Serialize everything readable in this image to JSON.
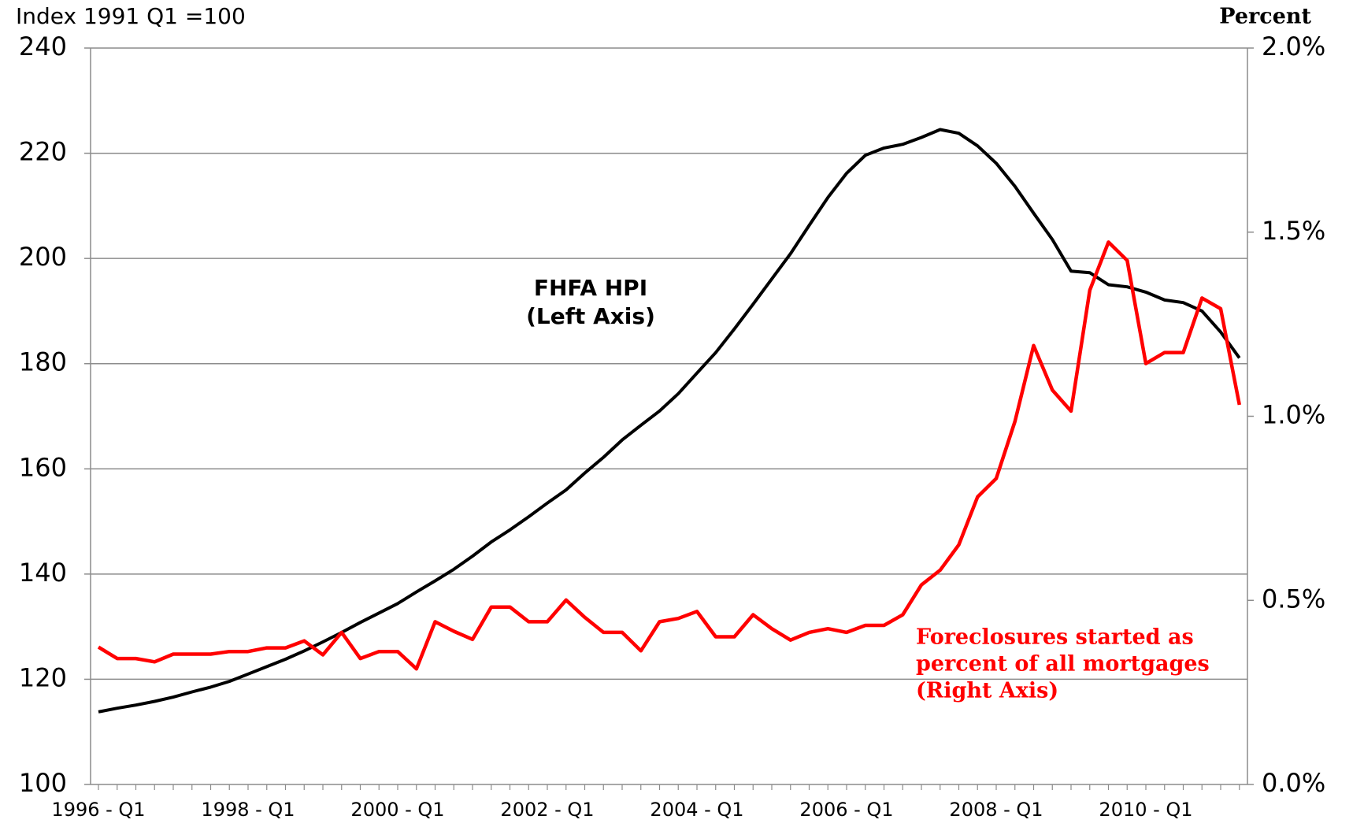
{
  "chart_data": {
    "type": "line",
    "y_axis_label": "Index 1991 Q1 =100",
    "y2_axis_label": "Percent",
    "categories": [
      "1996 - Q1",
      null,
      null,
      null,
      null,
      null,
      null,
      null,
      "1998 - Q1",
      null,
      null,
      null,
      null,
      null,
      null,
      null,
      "2000 - Q1",
      null,
      null,
      null,
      null,
      null,
      null,
      null,
      "2002 - Q1",
      null,
      null,
      null,
      null,
      null,
      null,
      null,
      "2004 - Q1",
      null,
      null,
      null,
      null,
      null,
      null,
      null,
      "2006 - Q1",
      null,
      null,
      null,
      null,
      null,
      null,
      null,
      "2008 - Q1",
      null,
      null,
      null,
      null,
      null,
      null,
      null,
      "2010 - Q1",
      null,
      null,
      null,
      null,
      null
    ],
    "series": [
      {
        "name": "FHFA HPI",
        "color": "#000000",
        "axis": "y",
        "values": [
          113.8,
          114.5,
          115.1,
          115.8,
          116.6,
          117.6,
          118.5,
          119.6,
          121.0,
          122.4,
          123.8,
          125.4,
          127.1,
          128.9,
          130.8,
          132.6,
          134.4,
          136.6,
          138.7,
          140.9,
          143.4,
          146.1,
          148.4,
          150.9,
          153.5,
          156.0,
          159.2,
          162.2,
          165.5,
          168.3,
          171.0,
          174.3,
          178.2,
          182.1,
          186.6,
          191.3,
          196.1,
          200.9,
          206.3,
          211.6,
          216.2,
          219.6,
          221.0,
          221.7,
          223.0,
          224.5,
          223.8,
          221.4,
          218.1,
          213.7,
          208.6,
          203.6,
          197.6,
          197.3,
          195.0,
          194.6,
          193.6,
          192.1,
          191.6,
          190.0,
          186.0,
          181.1
        ]
      },
      {
        "name": "Foreclosures started",
        "color": "#ff0000",
        "axis": "y2",
        "values": [
          0.373,
          0.342,
          0.342,
          0.333,
          0.354,
          0.354,
          0.354,
          0.361,
          0.361,
          0.371,
          0.371,
          0.39,
          0.352,
          0.413,
          0.342,
          0.361,
          0.361,
          0.314,
          0.442,
          0.416,
          0.394,
          0.482,
          0.482,
          0.442,
          0.442,
          0.501,
          0.454,
          0.413,
          0.413,
          0.363,
          0.442,
          0.451,
          0.47,
          0.401,
          0.401,
          0.461,
          0.423,
          0.392,
          0.413,
          0.423,
          0.413,
          0.432,
          0.432,
          0.461,
          0.542,
          0.582,
          0.651,
          0.781,
          0.831,
          0.986,
          1.192,
          1.071,
          1.014,
          1.342,
          1.473,
          1.423,
          1.143,
          1.173,
          1.173,
          1.321,
          1.292,
          1.031
        ]
      }
    ],
    "annotations": [
      {
        "lines": [
          "FHFA HPI",
          "(Left Axis)"
        ],
        "color": "#000000"
      },
      {
        "lines": [
          "Foreclosures started as",
          "percent of all mortgages",
          "(Right Axis)"
        ],
        "color": "#ff0000"
      }
    ],
    "ylim": [
      100,
      240
    ],
    "yticks": [
      100,
      120,
      140,
      160,
      180,
      200,
      220,
      240
    ],
    "y2lim": [
      0,
      2
    ],
    "y2ticks": [
      {
        "value": 0,
        "label": "0.0%"
      },
      {
        "value": 0.5,
        "label": "0.5%"
      },
      {
        "value": 1,
        "label": "1.0%"
      },
      {
        "value": 1.5,
        "label": "1.5%"
      },
      {
        "value": 2,
        "label": "2.0%"
      }
    ],
    "grid": true
  }
}
